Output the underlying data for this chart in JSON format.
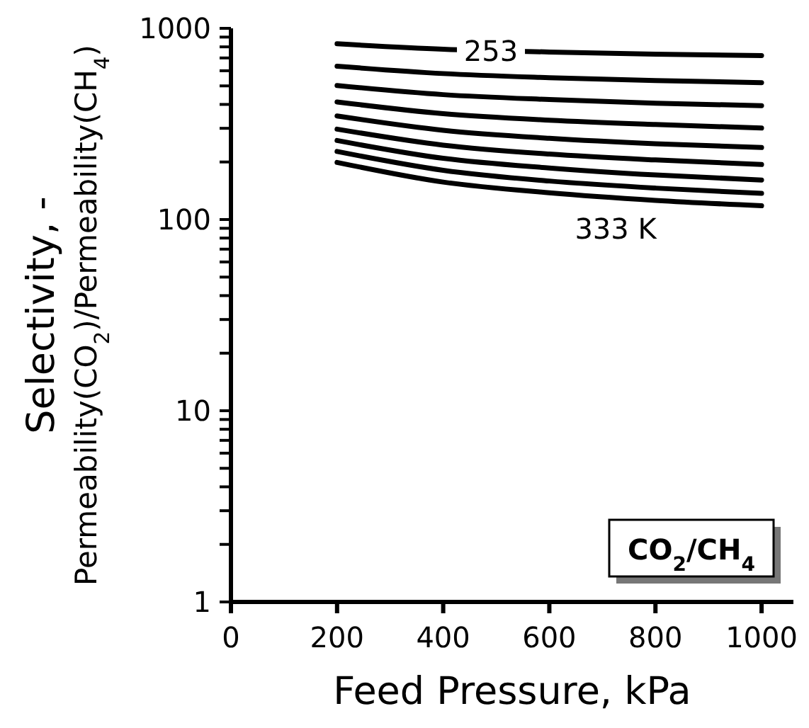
{
  "chart_data": {
    "type": "line",
    "xlabel": "Feed Pressure, kPa",
    "ylabel": "Selectivity, -\nPermeability(CO$_{2}$)/Permeability(CH$_{4}$)",
    "x": [
      200,
      400,
      600,
      800,
      1000
    ],
    "series": [
      {
        "color": "#000000",
        "values": [
          830,
          778,
          752,
          733,
          720
        ]
      },
      {
        "color": "#000000",
        "values": [
          634,
          580,
          552,
          533,
          520
        ]
      },
      {
        "color": "#000000",
        "values": [
          502,
          450,
          424,
          406,
          394
        ]
      },
      {
        "color": "#000000",
        "values": [
          412,
          358,
          331,
          314,
          301
        ]
      },
      {
        "color": "#000000",
        "values": [
          348,
          293,
          266,
          249,
          238
        ]
      },
      {
        "color": "#000000",
        "values": [
          297,
          245,
          220,
          205,
          194
        ]
      },
      {
        "color": "#000000",
        "values": [
          259,
          209,
          186,
          171,
          161
        ]
      },
      {
        "color": "#000000",
        "values": [
          227,
          181,
          159,
          146,
          137
        ]
      },
      {
        "color": "#000000",
        "values": [
          199,
          157,
          138,
          126,
          118
        ]
      }
    ],
    "log": "y",
    "xlim": [
      0,
      1060
    ],
    "xticks": [
      0,
      200,
      400,
      600,
      800,
      1000
    ],
    "ylim": [
      1,
      1000
    ],
    "yticks": [
      1,
      {
        "value": 2,
        "label": null
      },
      {
        "value": 3,
        "label": null
      },
      {
        "value": 4,
        "label": null
      },
      {
        "value": 5,
        "label": null
      },
      {
        "value": 6,
        "label": null
      },
      {
        "value": 7,
        "label": null
      },
      {
        "value": 8,
        "label": null
      },
      {
        "value": 9,
        "label": null
      },
      10,
      {
        "value": 20,
        "label": null
      },
      {
        "value": 30,
        "label": null
      },
      {
        "value": 40,
        "label": null
      },
      {
        "value": 50,
        "label": null
      },
      {
        "value": 60,
        "label": null
      },
      {
        "value": 70,
        "label": null
      },
      {
        "value": 80,
        "label": null
      },
      {
        "value": 90,
        "label": null
      },
      100,
      {
        "value": 200,
        "label": null
      },
      {
        "value": 300,
        "label": null
      },
      {
        "value": 400,
        "label": null
      },
      {
        "value": 500,
        "label": null
      },
      {
        "value": 600,
        "label": null
      },
      {
        "value": 700,
        "label": null
      },
      {
        "value": 800,
        "label": null
      },
      {
        "value": 900,
        "label": null
      },
      1000
    ],
    "marker": "none",
    "line_style": "solid",
    "annotations": [
      {
        "text": "253",
        "x": 490,
        "y": 760
      },
      {
        "text": "333 K",
        "x": 725,
        "y": 130
      },
      "CO$_{2}$/CH$_{4}$"
    ]
  }
}
